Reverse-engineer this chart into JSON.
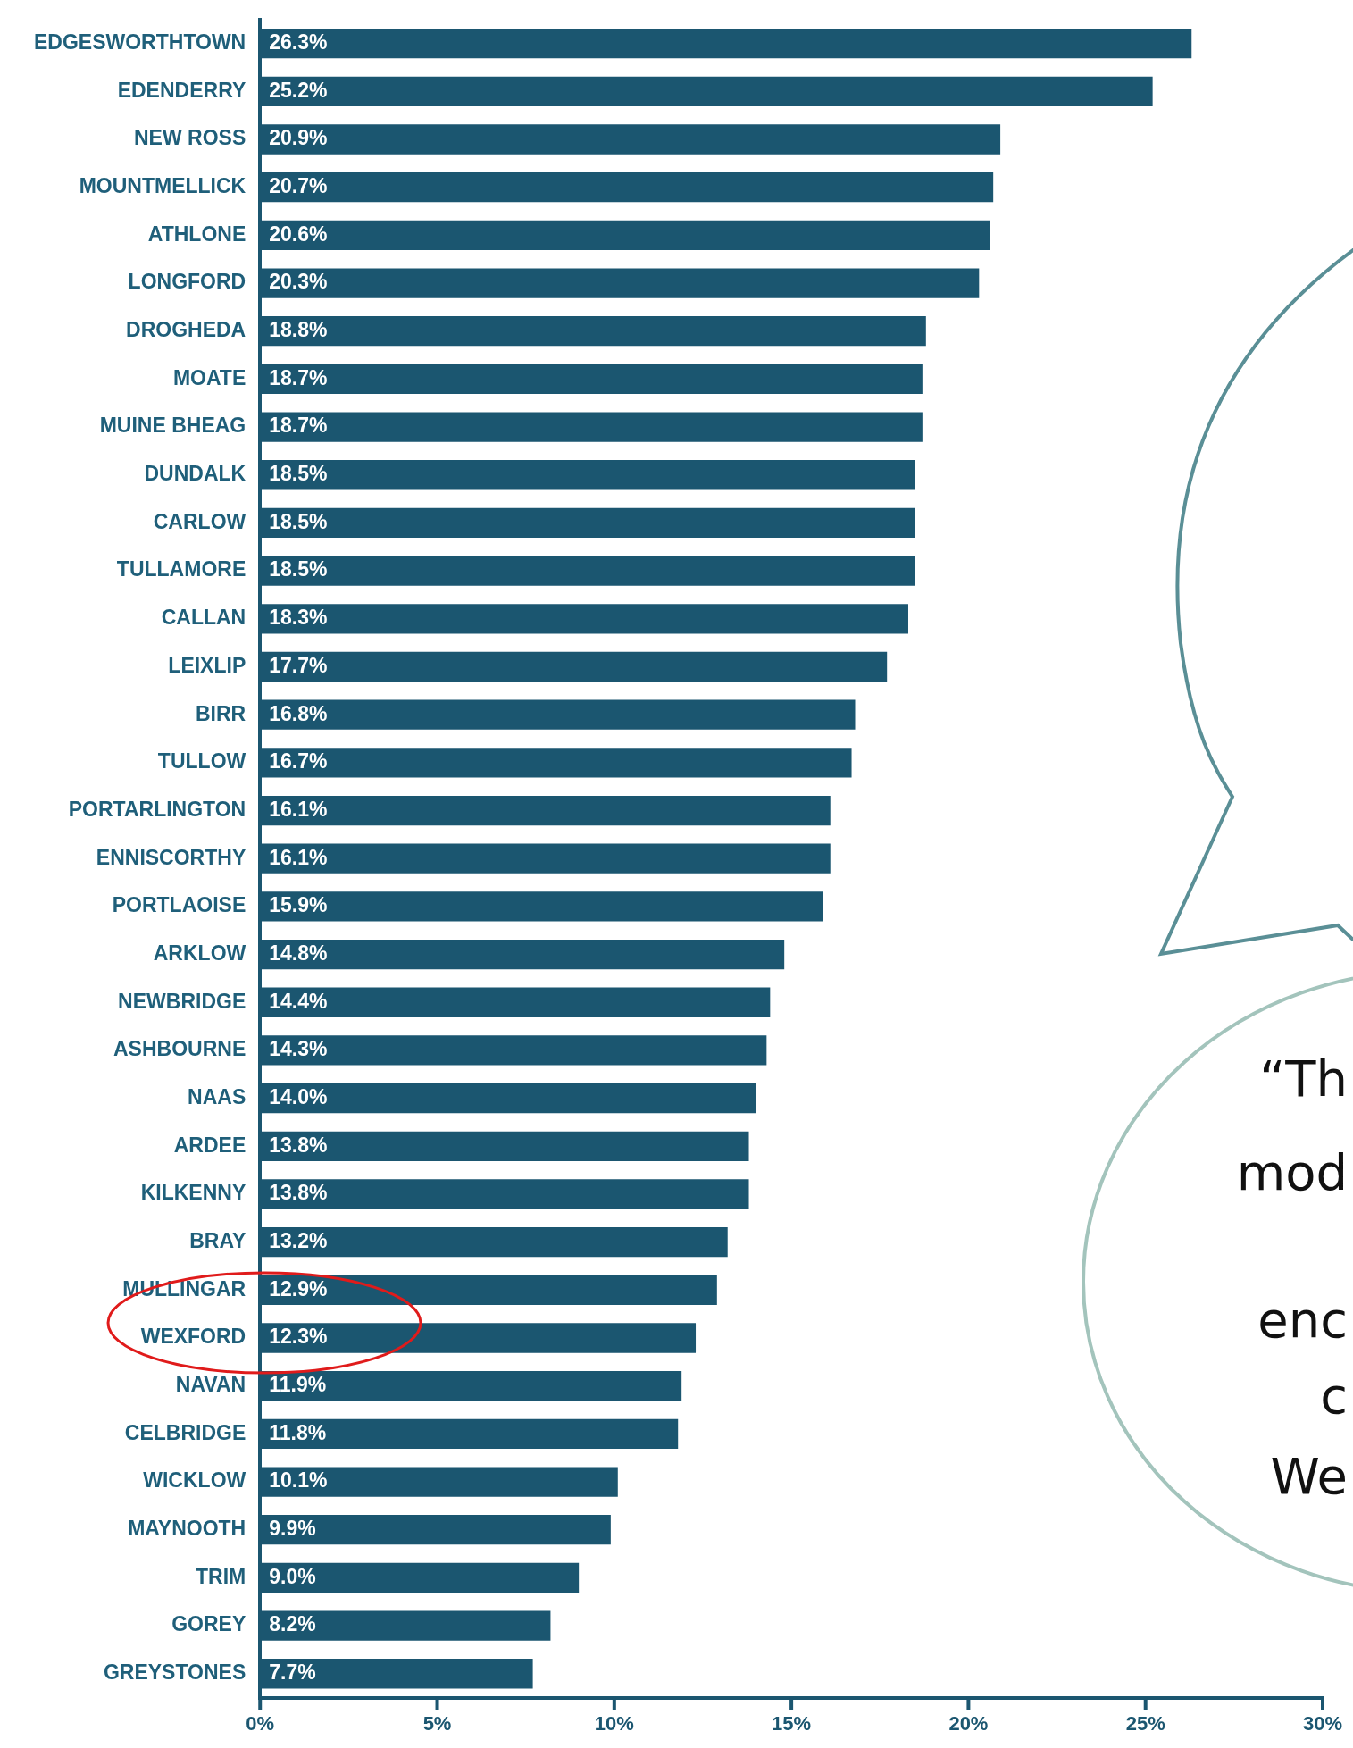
{
  "chart_data": {
    "type": "bar",
    "orientation": "horizontal",
    "color": "#1b5670",
    "categories": [
      "EDGESWORTHTOWN",
      "EDENDERRY",
      "NEW ROSS",
      "MOUNTMELLICK",
      "ATHLONE",
      "LONGFORD",
      "DROGHEDA",
      "MOATE",
      "MUINE BHEAG",
      "DUNDALK",
      "CARLOW",
      "TULLAMORE",
      "CALLAN",
      "LEIXLIP",
      "BIRR",
      "TULLOW",
      "PORTARLINGTON",
      "ENNISCORTHY",
      "PORTLAOISE",
      "ARKLOW",
      "NEWBRIDGE",
      "ASHBOURNE",
      "NAAS",
      "ARDEE",
      "KILKENNY",
      "BRAY",
      "MULLINGAR",
      "WEXFORD",
      "NAVAN",
      "CELBRIDGE",
      "WICKLOW",
      "MAYNOOTH",
      "TRIM",
      "GOREY",
      "GREYSTONES"
    ],
    "values": [
      26.3,
      25.2,
      20.9,
      20.7,
      20.6,
      20.3,
      18.8,
      18.7,
      18.7,
      18.5,
      18.5,
      18.5,
      18.3,
      17.7,
      16.8,
      16.7,
      16.1,
      16.1,
      15.9,
      14.8,
      14.4,
      14.3,
      14.0,
      13.8,
      13.8,
      13.2,
      12.9,
      12.3,
      11.9,
      11.8,
      10.1,
      9.9,
      9.0,
      8.2,
      7.7
    ],
    "value_labels": [
      "26.3%",
      "25.2%",
      "20.9%",
      "20.7%",
      "20.6%",
      "20.3%",
      "18.8%",
      "18.7%",
      "18.7%",
      "18.5%",
      "18.5%",
      "18.5%",
      "18.3%",
      "17.7%",
      "16.8%",
      "16.7%",
      "16.1%",
      "16.1%",
      "15.9%",
      "14.8%",
      "14.4%",
      "14.3%",
      "14.0%",
      "13.8%",
      "13.8%",
      "13.2%",
      "12.9%",
      "12.3%",
      "11.9%",
      "11.8%",
      "10.1%",
      "9.9%",
      "9.0%",
      "8.2%",
      "7.7%"
    ],
    "xlim": [
      0,
      30
    ],
    "xticks": [
      {
        "value": 0,
        "label": "0%"
      },
      {
        "value": 5,
        "label": "5%"
      },
      {
        "value": 10,
        "label": "10%"
      },
      {
        "value": 15,
        "label": "15%"
      },
      {
        "value": 20,
        "label": "20%"
      },
      {
        "value": 25,
        "label": "25%"
      },
      {
        "value": 30,
        "label": "30%"
      }
    ],
    "legend": false,
    "annotations": [
      "“Th",
      "mod",
      "enc",
      "c",
      "We"
    ]
  }
}
